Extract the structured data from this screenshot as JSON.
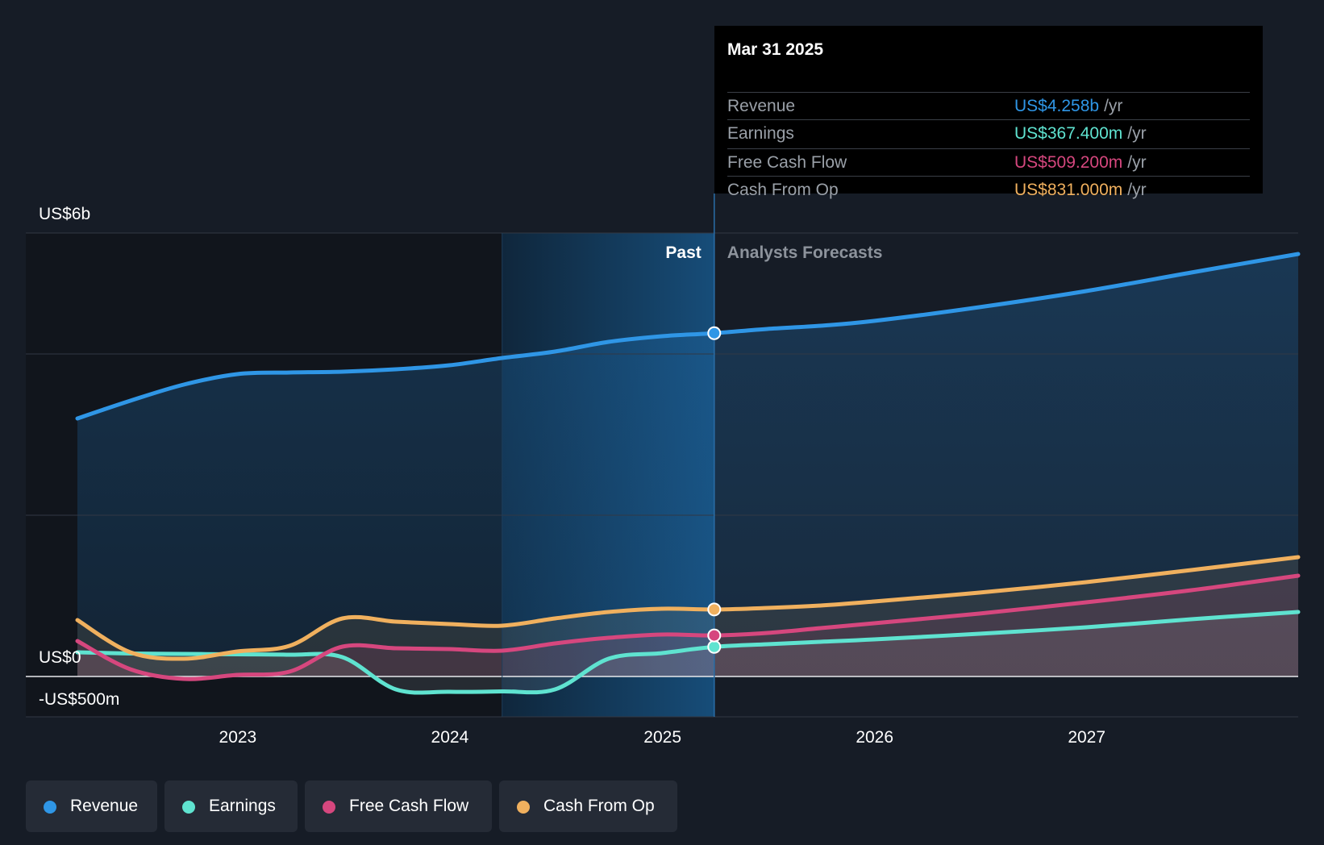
{
  "tooltip": {
    "date": "Mar 31 2025",
    "rows": [
      {
        "label": "Revenue",
        "value": "US$4.258b",
        "unit": "/yr",
        "color": "#2f96e6"
      },
      {
        "label": "Earnings",
        "value": "US$367.400m",
        "unit": "/yr",
        "color": "#5fe3d0"
      },
      {
        "label": "Free Cash Flow",
        "value": "US$509.200m",
        "unit": "/yr",
        "color": "#d6477e"
      },
      {
        "label": "Cash From Op",
        "value": "US$831.000m",
        "unit": "/yr",
        "color": "#f0b05e"
      }
    ]
  },
  "legend": [
    {
      "label": "Revenue",
      "color": "#2f96e6"
    },
    {
      "label": "Earnings",
      "color": "#5fe3d0"
    },
    {
      "label": "Free Cash Flow",
      "color": "#d6477e"
    },
    {
      "label": "Cash From Op",
      "color": "#f0b05e"
    }
  ],
  "chart_data": {
    "type": "line",
    "y_unit": "US$ millions",
    "ylim": [
      -500,
      5500
    ],
    "y_tick_labels": [
      {
        "value": 5500,
        "label": "US$6b"
      },
      {
        "value": 0,
        "label": "US$0"
      },
      {
        "value": -500,
        "label": "-US$500m"
      }
    ],
    "xlim": [
      "2022-03-31",
      "2027-12-31"
    ],
    "x_tick_labels": [
      {
        "date": "2023-01-01",
        "label": "2023"
      },
      {
        "date": "2024-01-01",
        "label": "2024"
      },
      {
        "date": "2025-01-01",
        "label": "2025"
      },
      {
        "date": "2026-01-01",
        "label": "2026"
      },
      {
        "date": "2027-01-01",
        "label": "2027"
      }
    ],
    "past_label": "Past",
    "forecast_label": "Analysts Forecasts",
    "past_end_date": "2025-03-31",
    "highlight_start_date": "2024-03-31",
    "grid": true,
    "legend_position": "bottom-left",
    "series": [
      {
        "name": "Revenue",
        "color": "#2f96e6",
        "points": [
          [
            "2022-03-31",
            3200
          ],
          [
            "2022-06-30",
            3420
          ],
          [
            "2022-09-30",
            3620
          ],
          [
            "2022-12-31",
            3750
          ],
          [
            "2023-03-31",
            3770
          ],
          [
            "2023-06-30",
            3780
          ],
          [
            "2023-09-30",
            3810
          ],
          [
            "2023-12-31",
            3860
          ],
          [
            "2024-03-31",
            3950
          ],
          [
            "2024-06-30",
            4030
          ],
          [
            "2024-09-30",
            4150
          ],
          [
            "2024-12-31",
            4220
          ],
          [
            "2025-03-31",
            4258
          ],
          [
            "2025-06-30",
            4310
          ],
          [
            "2025-09-30",
            4350
          ],
          [
            "2025-12-31",
            4410
          ],
          [
            "2026-06-30",
            4580
          ],
          [
            "2026-12-31",
            4780
          ],
          [
            "2027-06-30",
            5010
          ],
          [
            "2027-12-31",
            5240
          ]
        ]
      },
      {
        "name": "Earnings",
        "color": "#5fe3d0",
        "points": [
          [
            "2022-03-31",
            300
          ],
          [
            "2022-06-30",
            285
          ],
          [
            "2022-09-30",
            280
          ],
          [
            "2022-12-31",
            275
          ],
          [
            "2023-03-31",
            270
          ],
          [
            "2023-06-30",
            240
          ],
          [
            "2023-09-30",
            -160
          ],
          [
            "2023-12-31",
            -190
          ],
          [
            "2024-03-31",
            -185
          ],
          [
            "2024-06-30",
            -160
          ],
          [
            "2024-09-30",
            220
          ],
          [
            "2024-12-31",
            290
          ],
          [
            "2025-03-31",
            367.4
          ],
          [
            "2025-06-30",
            400
          ],
          [
            "2025-09-30",
            430
          ],
          [
            "2025-12-31",
            460
          ],
          [
            "2026-06-30",
            530
          ],
          [
            "2026-12-31",
            610
          ],
          [
            "2027-06-30",
            710
          ],
          [
            "2027-12-31",
            800
          ]
        ]
      },
      {
        "name": "Free Cash Flow",
        "color": "#d6477e",
        "points": [
          [
            "2022-03-31",
            440
          ],
          [
            "2022-06-30",
            90
          ],
          [
            "2022-09-30",
            -30
          ],
          [
            "2022-12-31",
            20
          ],
          [
            "2023-03-31",
            60
          ],
          [
            "2023-06-30",
            370
          ],
          [
            "2023-09-30",
            350
          ],
          [
            "2023-12-31",
            340
          ],
          [
            "2024-03-31",
            320
          ],
          [
            "2024-06-30",
            410
          ],
          [
            "2024-09-30",
            480
          ],
          [
            "2024-12-31",
            520
          ],
          [
            "2025-03-31",
            509.2
          ],
          [
            "2025-06-30",
            540
          ],
          [
            "2025-09-30",
            600
          ],
          [
            "2025-12-31",
            660
          ],
          [
            "2026-06-30",
            780
          ],
          [
            "2026-12-31",
            920
          ],
          [
            "2027-06-30",
            1070
          ],
          [
            "2027-12-31",
            1250
          ]
        ]
      },
      {
        "name": "Cash From Op",
        "color": "#f0b05e",
        "points": [
          [
            "2022-03-31",
            700
          ],
          [
            "2022-06-30",
            300
          ],
          [
            "2022-09-30",
            220
          ],
          [
            "2022-12-31",
            310
          ],
          [
            "2023-03-31",
            380
          ],
          [
            "2023-06-30",
            720
          ],
          [
            "2023-09-30",
            680
          ],
          [
            "2023-12-31",
            650
          ],
          [
            "2024-03-31",
            630
          ],
          [
            "2024-06-30",
            720
          ],
          [
            "2024-09-30",
            800
          ],
          [
            "2024-12-31",
            840
          ],
          [
            "2025-03-31",
            831
          ],
          [
            "2025-06-30",
            850
          ],
          [
            "2025-09-30",
            880
          ],
          [
            "2025-12-31",
            930
          ],
          [
            "2026-06-30",
            1040
          ],
          [
            "2026-12-31",
            1170
          ],
          [
            "2027-06-30",
            1320
          ],
          [
            "2027-12-31",
            1480
          ]
        ]
      }
    ]
  }
}
